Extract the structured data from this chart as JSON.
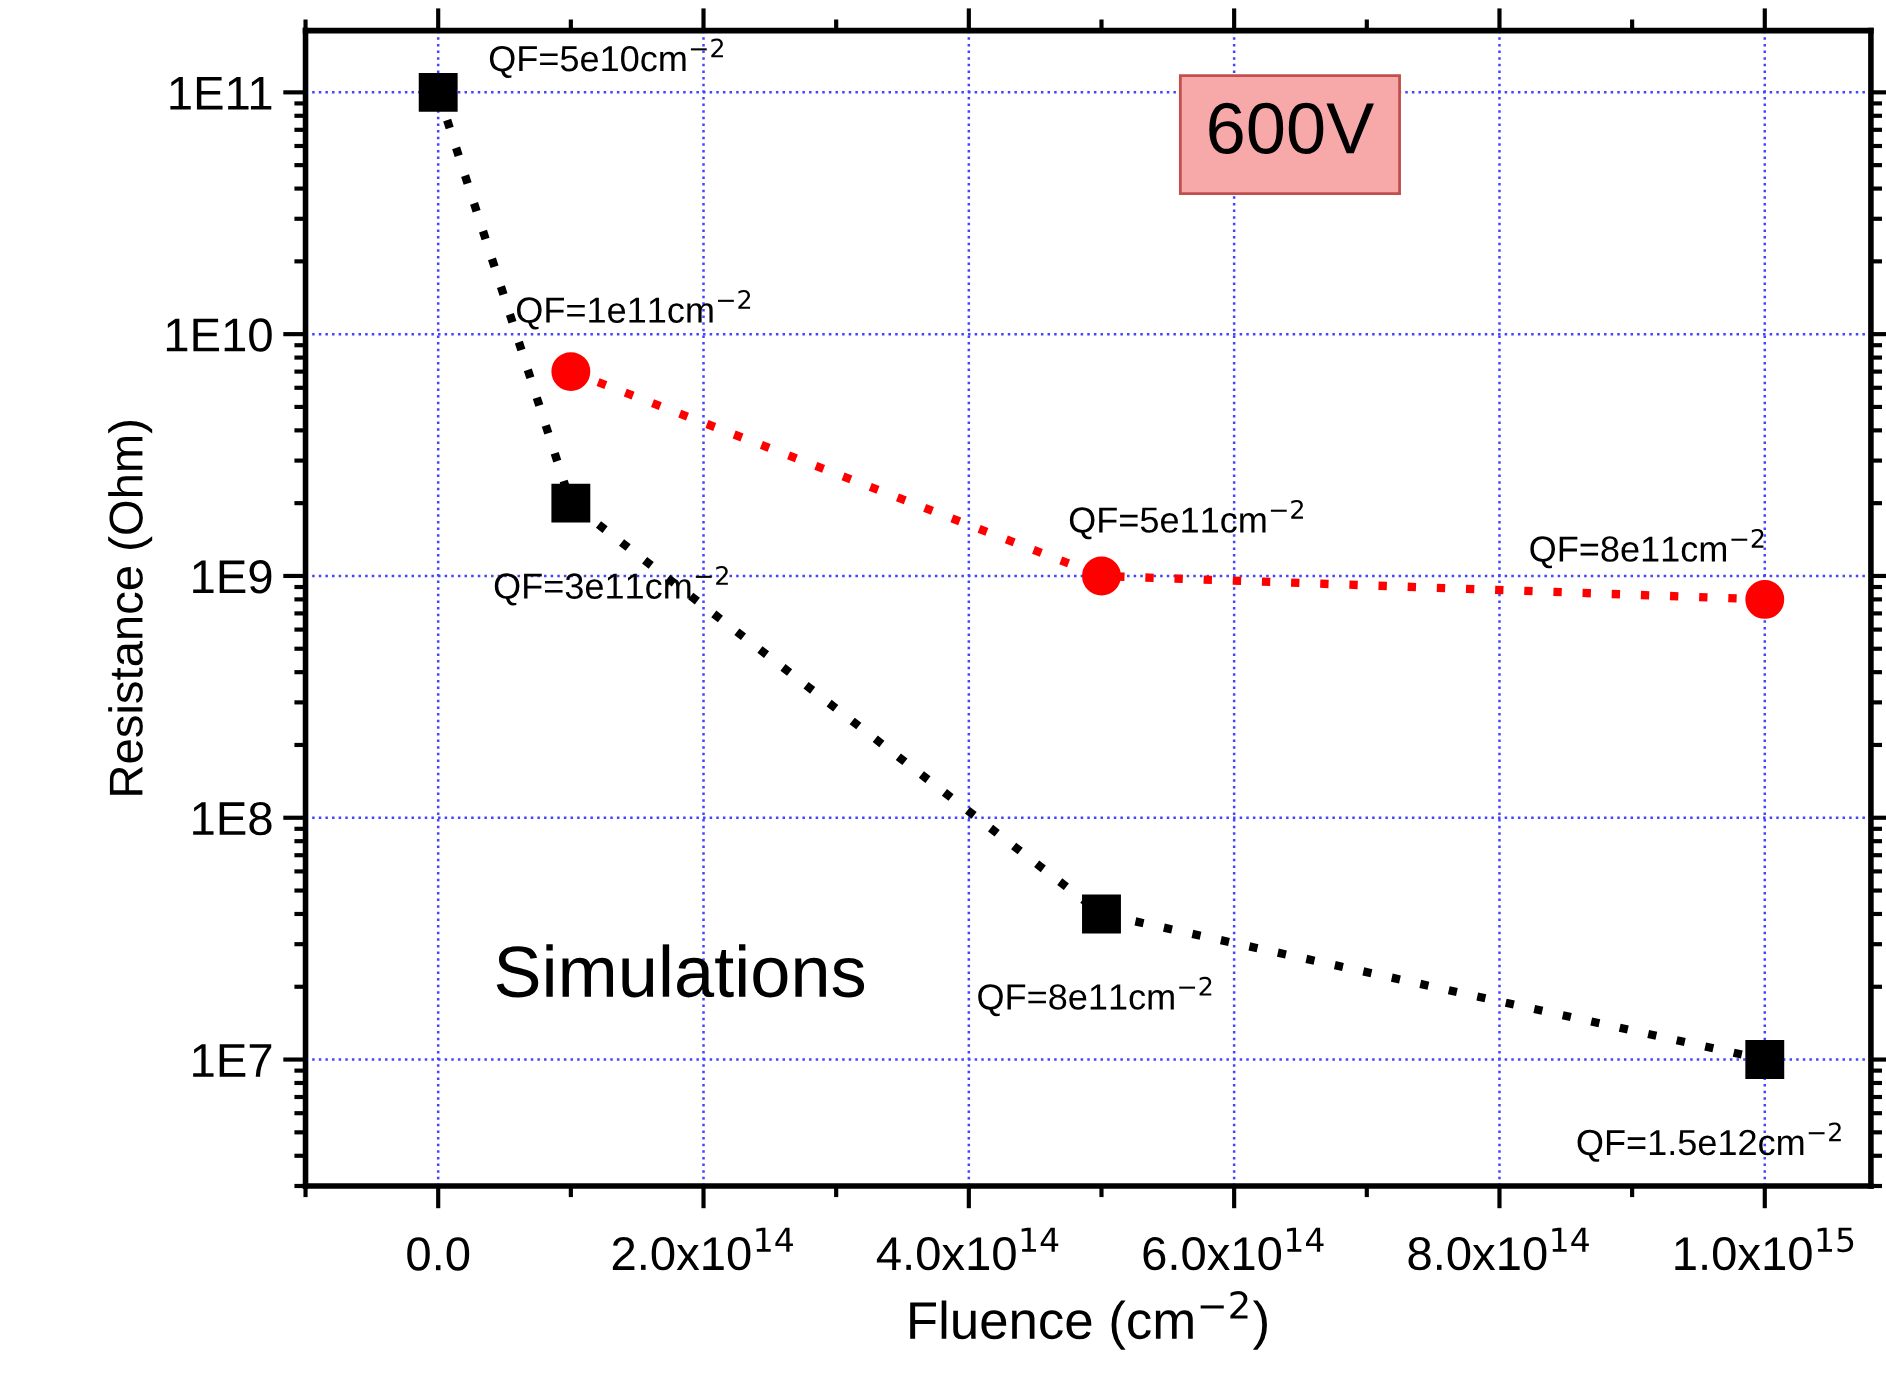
{
  "chart_data": {
    "type": "line",
    "xlabel": "Fluence (cm$^{−2}$)",
    "ylabel": "Resistance (Ohm)",
    "log": "y",
    "grid": true,
    "line_style": "dotted",
    "xlim": [
      -100000000000000.0,
      1080000000000000.0
    ],
    "xticks": [
      {
        "value": 0,
        "label": "0.0"
      },
      {
        "value": 200000000000000.0,
        "label": "2.0x10$^{14}$"
      },
      {
        "value": 400000000000000.0,
        "label": "4.0x10$^{14}$"
      },
      {
        "value": 600000000000000.0,
        "label": "6.0x10$^{14}$"
      },
      {
        "value": 800000000000000.0,
        "label": "8.0x10$^{14}$"
      },
      {
        "value": 1000000000000000.0,
        "label": "1.0x10$^{15}$"
      }
    ],
    "ylim": [
      3000000.0,
      180000000000.0
    ],
    "yticks": [
      {
        "value": 10000000.0,
        "label": "1E7"
      },
      {
        "value": 100000000.0,
        "label": "1E8"
      },
      {
        "value": 1000000000.0,
        "label": "1E9"
      },
      {
        "value": 10000000000.0,
        "label": "1E10"
      },
      {
        "value": 100000000000.0,
        "label": "1E11"
      }
    ],
    "series": [
      {
        "color": "#000000",
        "marker": "square",
        "x": [
          0,
          100000000000000.0,
          500000000000000.0,
          1000000000000000.0
        ],
        "values": [
          100000000000.0,
          2000000000.0,
          40000000.0,
          10000000.0
        ]
      },
      {
        "color": "#ff0000",
        "marker": "circle",
        "x": [
          100000000000000.0,
          500000000000000.0,
          1000000000000000.0
        ],
        "values": [
          7000000000.0,
          1000000000.0,
          800000000.0
        ]
      }
    ],
    "annotations": [
      {
        "text": "QF=5e10cm$^{−2}$",
        "x": 0,
        "y": 100000000000.0
      },
      {
        "text": "QF=3e11cm$^{−2}$",
        "x": 100000000000000.0,
        "y": 2000000000.0
      },
      {
        "text": "QF=8e11cm$^{−2}$",
        "x": 500000000000000.0,
        "y": 40000000.0
      },
      {
        "text": "QF=1.5e12cm$^{−2}$",
        "x": 1000000000000000.0,
        "y": 10000000.0
      },
      {
        "text": "QF=1e11cm$^{−2}$",
        "x": 100000000000000.0,
        "y": 7000000000.0
      },
      {
        "text": "QF=5e11cm$^{−2}$",
        "x": 500000000000000.0,
        "y": 1000000000.0
      },
      {
        "text": "QF=8e11cm$^{−2}$",
        "x": 1000000000000000.0,
        "y": 800000000.0
      },
      "600V",
      "Simulations"
    ]
  }
}
